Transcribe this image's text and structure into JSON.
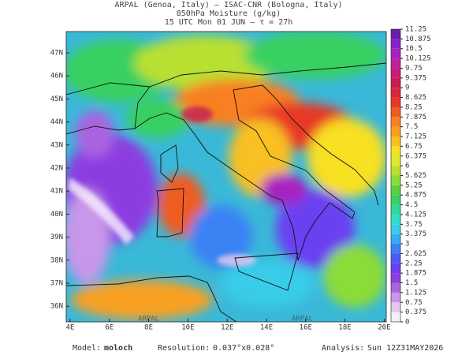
{
  "header": {
    "line1": "ARPAL (Genoa, Italy)  –  ISAC-CNR (Bologna, Italy)",
    "line2": "850hPa Moisture (g/kg)",
    "line3": "15 UTC Mon 01 JUN  –  τ = 27h"
  },
  "map": {
    "lat_labels": [
      "47N",
      "46N",
      "45N",
      "44N",
      "43N",
      "42N",
      "41N",
      "40N",
      "39N",
      "38N",
      "37N",
      "36N"
    ],
    "lon_labels": [
      "4E",
      "6E",
      "8E",
      "10E",
      "12E",
      "14E",
      "16E",
      "18E",
      "20E"
    ],
    "watermark": "ARPAL"
  },
  "colorbar": {
    "levels": [
      0,
      0.375,
      0.75,
      1.125,
      1.5,
      1.875,
      2.25,
      2.625,
      3,
      3.375,
      3.75,
      4.125,
      4.5,
      4.875,
      5.25,
      5.625,
      6,
      6.375,
      6.75,
      7.125,
      7.5,
      7.875,
      8.25,
      8.625,
      9,
      9.375,
      9.75,
      10.125,
      10.5,
      10.875,
      11.25
    ],
    "colors": [
      "#f4f0f8",
      "#e2c8f0",
      "#c896ea",
      "#a964e0",
      "#8c3ee0",
      "#6a40f0",
      "#4a5cf5",
      "#3a82f5",
      "#3aaaf0",
      "#38cce8",
      "#30dcc8",
      "#30d898",
      "#38d060",
      "#5ad040",
      "#8cdc38",
      "#b8e030",
      "#e0e828",
      "#f8e020",
      "#f8c020",
      "#f8a020",
      "#f88020",
      "#f05c20",
      "#e83828",
      "#d82838",
      "#c81c50",
      "#c81c78",
      "#c020a0",
      "#a820c0",
      "#8a20c8",
      "#6a1ca8"
    ]
  },
  "footer": {
    "model_label": "Model:",
    "model": "moloch",
    "resolution_label": "Resolution:",
    "resolution": "0.037°x0.028°",
    "analysis_label": "Analysis:",
    "analysis": "Sun 12Z31MAY2026"
  }
}
